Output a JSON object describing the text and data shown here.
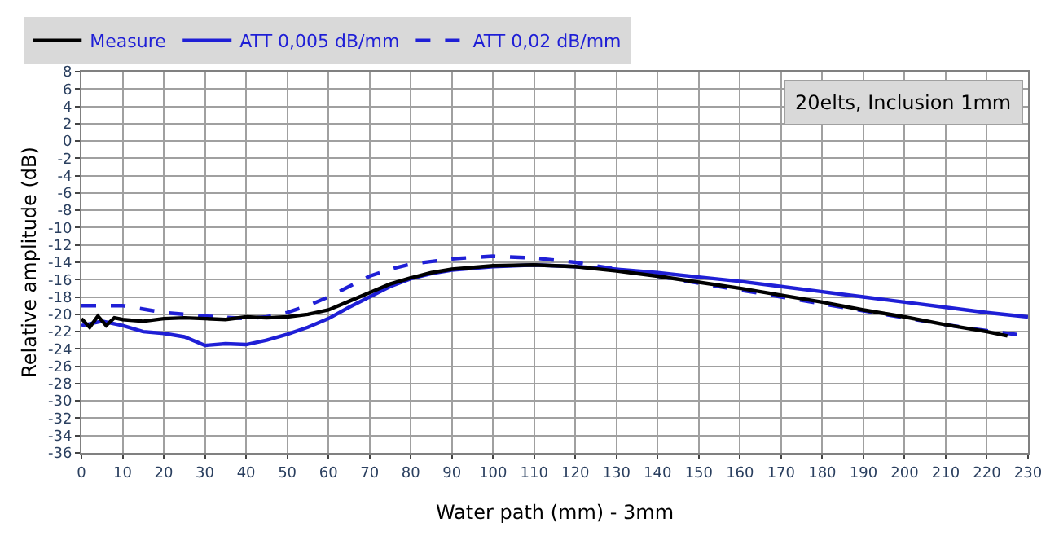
{
  "chart_data": {
    "type": "line",
    "xlabel": "Water path (mm) - 3mm",
    "ylabel": "Relative amplitude (dB)",
    "annotations": [
      "20elts, Inclusion 1mm"
    ],
    "xlim": [
      0,
      230
    ],
    "xticks": [
      0,
      10,
      20,
      30,
      40,
      50,
      60,
      70,
      80,
      90,
      100,
      110,
      120,
      130,
      140,
      150,
      160,
      170,
      180,
      190,
      200,
      210,
      220,
      230
    ],
    "ylim": [
      -36,
      8
    ],
    "yticks": [
      -36,
      -34,
      -32,
      -30,
      -28,
      -26,
      -24,
      -22,
      -20,
      -18,
      -16,
      -14,
      -12,
      -10,
      -8,
      -6,
      -4,
      -2,
      0,
      2,
      4,
      6,
      8
    ],
    "grid": true,
    "legend": "top left",
    "marker": "none",
    "series": [
      {
        "name": "Measure",
        "color": "#000000",
        "line_style": "solid",
        "x": [
          0,
          2,
          4,
          6,
          8,
          10,
          15,
          20,
          25,
          30,
          35,
          40,
          45,
          50,
          55,
          60,
          65,
          70,
          75,
          80,
          85,
          90,
          100,
          110,
          120,
          130,
          140,
          150,
          160,
          170,
          180,
          190,
          200,
          210,
          220,
          225
        ],
        "values": [
          -20.5,
          -21.5,
          -20.2,
          -21.3,
          -20.4,
          -20.6,
          -20.8,
          -20.5,
          -20.4,
          -20.5,
          -20.6,
          -20.3,
          -20.4,
          -20.3,
          -20.0,
          -19.5,
          -18.5,
          -17.5,
          -16.5,
          -15.8,
          -15.2,
          -14.8,
          -14.4,
          -14.3,
          -14.5,
          -15.0,
          -15.6,
          -16.3,
          -17.0,
          -17.8,
          -18.6,
          -19.5,
          -20.3,
          -21.2,
          -22.0,
          -22.5
        ]
      },
      {
        "name": "ATT 0,005 dB/mm",
        "color": "#1f1fd6",
        "line_style": "solid",
        "x": [
          0,
          5,
          10,
          15,
          20,
          25,
          30,
          35,
          40,
          45,
          50,
          55,
          60,
          65,
          70,
          75,
          80,
          85,
          90,
          100,
          110,
          120,
          130,
          140,
          150,
          160,
          170,
          180,
          190,
          200,
          210,
          220,
          230
        ],
        "values": [
          -21.3,
          -20.8,
          -21.3,
          -22.0,
          -22.2,
          -22.6,
          -23.6,
          -23.4,
          -23.5,
          -23.0,
          -22.3,
          -21.5,
          -20.5,
          -19.2,
          -18.0,
          -16.8,
          -15.9,
          -15.3,
          -14.9,
          -14.5,
          -14.3,
          -14.5,
          -14.8,
          -15.2,
          -15.7,
          -16.2,
          -16.8,
          -17.4,
          -18.0,
          -18.6,
          -19.2,
          -19.8,
          -20.3
        ]
      },
      {
        "name": "ATT 0,02 dB/mm",
        "color": "#1f1fd6",
        "line_style": "dashed",
        "x": [
          0,
          10,
          20,
          30,
          40,
          45,
          50,
          55,
          60,
          65,
          70,
          75,
          80,
          90,
          100,
          110,
          120,
          130,
          140,
          150,
          160,
          170,
          180,
          190,
          200,
          210,
          220,
          230
        ],
        "values": [
          -19.0,
          -19.0,
          -19.8,
          -20.2,
          -20.5,
          -20.3,
          -19.8,
          -19.0,
          -18.0,
          -16.8,
          -15.6,
          -14.8,
          -14.2,
          -13.6,
          -13.3,
          -13.5,
          -14.0,
          -14.8,
          -15.6,
          -16.4,
          -17.2,
          -18.0,
          -18.8,
          -19.6,
          -20.4,
          -21.2,
          -21.9,
          -22.5
        ]
      }
    ]
  }
}
